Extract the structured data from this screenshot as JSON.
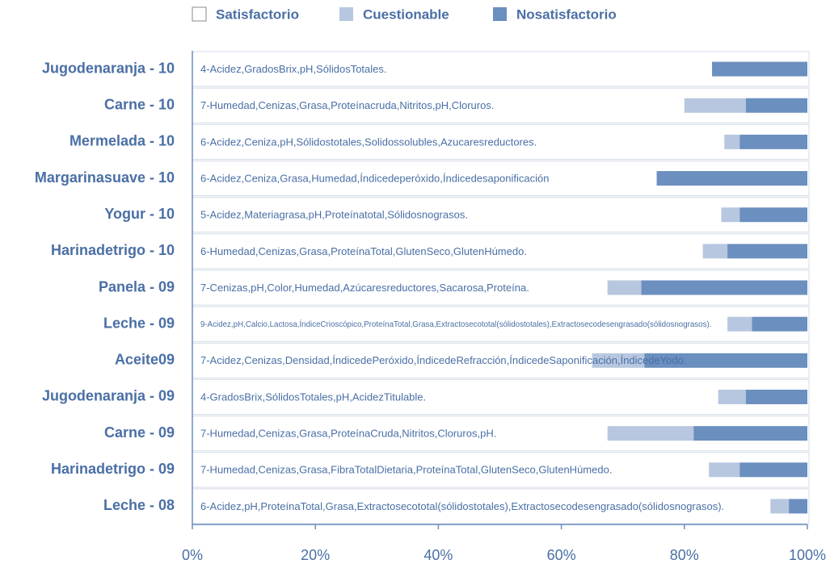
{
  "chart_data": {
    "type": "stacked-barh",
    "categories": [
      "Jugodenaranja - 10",
      "Carne - 10",
      "Mermelada - 10",
      "Margarinasuave - 10",
      "Yogur - 10",
      "Harinadetrigo - 10",
      "Panela - 09",
      "Leche - 09",
      "Aceite09",
      "Jugodenaranja - 09",
      "Carne - 09",
      "Harinadetrigo - 09",
      "Leche - 08"
    ],
    "annotations": [
      "4-Acidez,GradosBrix,pH,SólidosTotales.",
      "7-Humedad,Cenizas,Grasa,Proteínacruda,Nitritos,pH,Cloruros.",
      "6-Acidez,Ceniza,pH,Sólidostotales,Solidossolubles,Azucaresreductores.",
      "6-Acidez,Ceniza,Grasa,Humedad,Índicedeperóxido,Índicedesaponificación",
      "5-Acidez,Materiagrasa,pH,Proteínatotal,Sólidosnograsos.",
      "6-Humedad,Cenizas,Grasa,ProteínaTotal,GlutenSeco,GlutenHúmedo.",
      "7-Cenizas,pH,Color,Humedad,Azúcaresreductores,Sacarosa,Proteína.",
      "9-Acidez,pH,Calcio,Lactosa,ÍndiceCrioscópico,ProteínaTotal,Grasa,Extractosecototal(sólidostotales),Extractosecodesengrasado(sólidosnograsos).",
      "7-Acidez,Cenizas,Densidad,ÍndicedePeróxido,ÍndicedeRefracción,ÍndicedeSaponificación,ÍndicedeYodo.",
      "4-GradosBrix,SólidosTotales,pH,AcidezTitulable.",
      "7-Humedad,Cenizas,Grasa,ProteínaCruda,Nitritos,Cloruros,pH.",
      "7-Humedad,Cenizas,Grasa,FibraTotalDietaria,ProteínaTotal,GlutenSeco,GlutenHúmedo.",
      "6-Acidez,pH,ProteínaTotal,Grasa,Extractosecototal(sólidostotales),Extractosecodesengrasado(sólidosnograsos)."
    ],
    "series": [
      {
        "name": "Satisfactorio",
        "color": "#ffffff",
        "values": [
          84.5,
          80,
          86.5,
          75.5,
          86,
          83,
          67.5,
          87,
          65,
          85.5,
          67.5,
          84,
          94
        ]
      },
      {
        "name": "Cuestionable",
        "color": "#b7c7df",
        "values": [
          0,
          10,
          2.5,
          0,
          3,
          4,
          5.5,
          4,
          8.5,
          4.5,
          14,
          5,
          3
        ]
      },
      {
        "name": "Nosatisfactorio",
        "color": "#6b8fbf",
        "values": [
          15.5,
          10,
          11,
          24.5,
          11,
          13,
          27,
          9,
          26.5,
          10,
          18.5,
          11,
          3
        ]
      }
    ],
    "xlim": [
      0,
      100
    ],
    "xticks": [
      {
        "value": 0,
        "label": "0%"
      },
      {
        "value": 20,
        "label": "20%"
      },
      {
        "value": 40,
        "label": "40%"
      },
      {
        "value": 60,
        "label": "60%"
      },
      {
        "value": 80,
        "label": "80%"
      },
      {
        "value": 100,
        "label": "100%"
      }
    ]
  }
}
